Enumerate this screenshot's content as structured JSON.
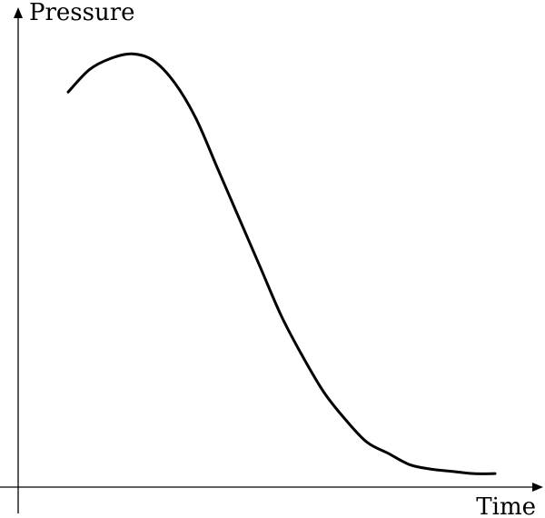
{
  "chart_data": {
    "type": "line",
    "title": "",
    "xlabel": "Time",
    "ylabel": "Pressure",
    "xlim": [
      0,
      10
    ],
    "ylim": [
      0,
      10
    ],
    "grid": false,
    "legend": "none",
    "series": [
      {
        "x": [
          0,
          0.5,
          1,
          1.5,
          2,
          2.5,
          3,
          3.5,
          4,
          4.5,
          5,
          5.5,
          6,
          6.5,
          7,
          7.5,
          8,
          8.5,
          9,
          9.5,
          10
        ],
        "y": [
          8.8,
          9.3,
          9.55,
          9.65,
          9.5,
          9.0,
          8.2,
          7.1,
          6.0,
          4.9,
          3.8,
          2.9,
          2.1,
          1.5,
          1.0,
          0.75,
          0.5,
          0.4,
          0.35,
          0.3,
          0.3
        ]
      }
    ]
  }
}
